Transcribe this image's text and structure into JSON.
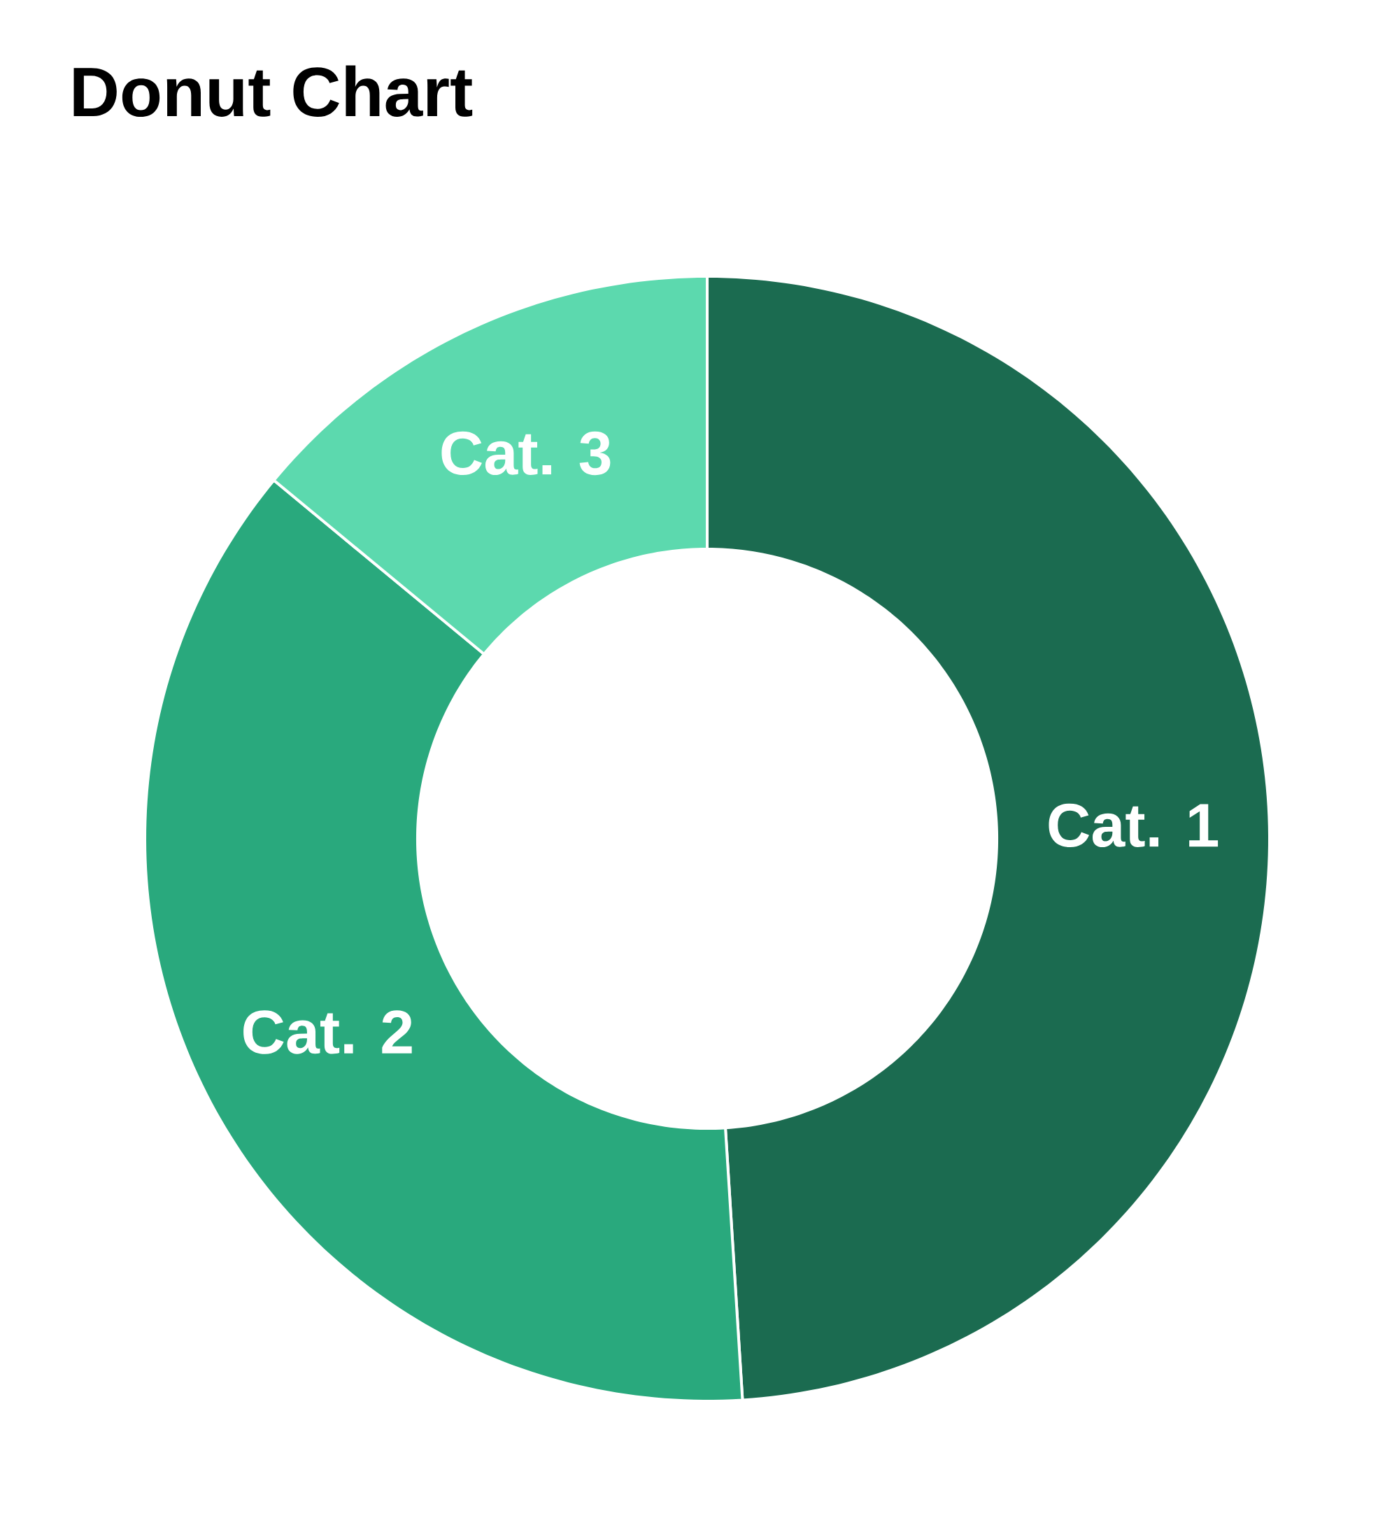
{
  "chart_data": {
    "type": "donut",
    "title": "Donut Chart",
    "categories": [
      "Cat. 1",
      "Cat. 2",
      "Cat. 3"
    ],
    "values": [
      49,
      37,
      14
    ],
    "colors": [
      "#1b6b50",
      "#29a97d",
      "#5cd9ae"
    ]
  }
}
